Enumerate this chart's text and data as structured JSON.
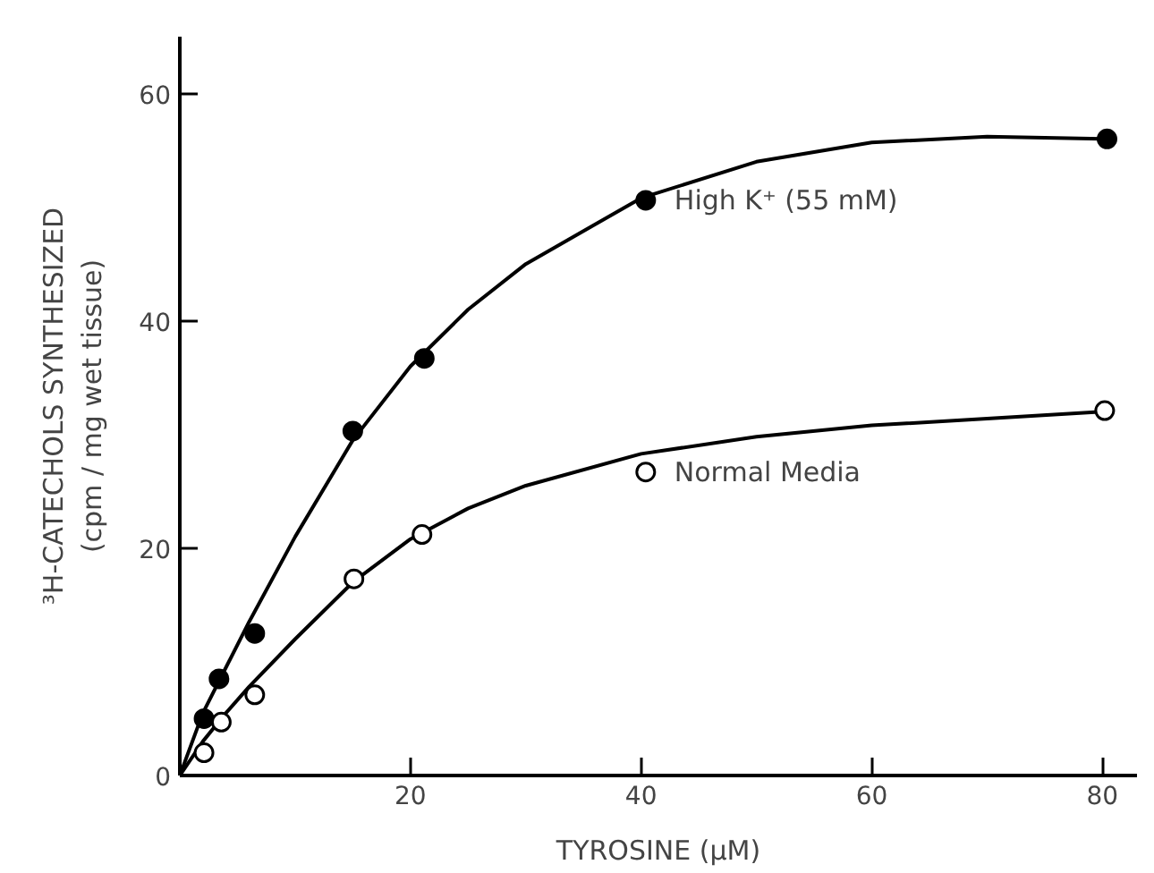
{
  "chart_data": {
    "type": "scatter",
    "xlabel": "TYROSINE (μM)",
    "ylabel": "³H-CATECHOLS SYNTHESIZED\n(cpm / mg wet tissue)",
    "xlim": [
      0,
      83
    ],
    "ylim": [
      0,
      65
    ],
    "xticks": [
      20,
      40,
      60,
      80
    ],
    "yticks": [
      0,
      20,
      40,
      60
    ],
    "grid": false,
    "series": [
      {
        "type": "line",
        "marker": "none",
        "color": "#000000",
        "x": [
          0,
          2,
          4,
          6,
          10,
          15,
          20,
          25,
          30,
          40,
          50,
          60,
          70,
          80
        ],
        "values": [
          0,
          5.5,
          9.5,
          13.5,
          21,
          29.5,
          36,
          41,
          45,
          50.8,
          54,
          55.7,
          56.2,
          56
        ]
      },
      {
        "type": "line",
        "marker": "none",
        "color": "#000000",
        "x": [
          0,
          2,
          4,
          6,
          10,
          15,
          20,
          25,
          30,
          40,
          50,
          60,
          70,
          80
        ],
        "values": [
          0,
          3,
          5.5,
          7.8,
          12,
          17,
          20.8,
          23.5,
          25.5,
          28.3,
          29.8,
          30.8,
          31.4,
          32
        ]
      },
      {
        "name": "High K⁺ (55 mM)",
        "marker": "circle",
        "color": "#000000",
        "x": [
          2.1,
          3.4,
          6.5,
          15.0,
          21.2,
          40.4,
          80.4
        ],
        "values": [
          5.0,
          8.5,
          12.5,
          30.3,
          36.7,
          50.6,
          56
        ]
      },
      {
        "name": "Normal Media",
        "marker": "circle",
        "color": "#ffffff",
        "x": [
          2.1,
          3.6,
          6.5,
          15.1,
          21.0,
          40.4,
          80.2
        ],
        "values": [
          2.0,
          4.7,
          7.1,
          17.3,
          21.2,
          26.7,
          32.1
        ]
      }
    ]
  }
}
